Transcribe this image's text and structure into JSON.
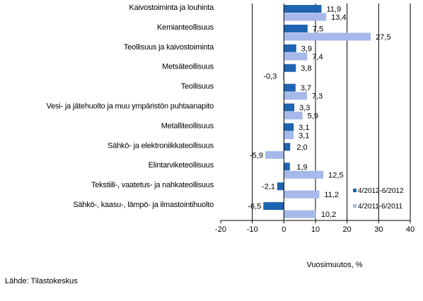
{
  "chart_data": {
    "type": "bar",
    "orientation": "horizontal",
    "categories": [
      "Kaivostoiminta ja louhinta",
      "Kemianteollisuus",
      "Teollisuus ja kaivostoiminta",
      "Metsäteollisuus",
      "Teollisuus",
      "Vesi- ja jätehuolto ja muu ympäristön puhtaanapito",
      "Metalliteollisuus",
      "Sähkö- ja elektroniikkateollisuus",
      "Elintarviketeollisuus",
      "Tekstiili-, vaatetus- ja nahkateollisuus",
      "Sähkö-, kaasu-, lämpö- ja ilmastointihuolto"
    ],
    "series": [
      {
        "name": "4/2012-6/2012",
        "color": "#1f64b0",
        "values": [
          11.9,
          7.5,
          3.9,
          3.8,
          3.7,
          3.3,
          3.1,
          2.0,
          1.9,
          -2.1,
          -6.5
        ],
        "labels": [
          "11,9",
          "7,5",
          "3,9",
          "3,8",
          "3,7",
          "3,3",
          "3,1",
          "2,0",
          "1,9",
          "-2,1",
          "-6,5"
        ]
      },
      {
        "name": "4/2011-6/2011",
        "color": "#a6b9ea",
        "values": [
          13.4,
          27.5,
          7.4,
          -0.3,
          7.3,
          5.9,
          3.1,
          -5.9,
          12.5,
          11.2,
          10.2
        ],
        "labels": [
          "13,4",
          "27,5",
          "7,4",
          "-0,3",
          "7,3",
          "5,9",
          "3,1",
          "-5,9",
          "12,5",
          "11,2",
          "10,2"
        ]
      }
    ],
    "xlim": [
      -20,
      40
    ],
    "x_ticks": [
      -20,
      -10,
      0,
      10,
      20,
      30,
      40
    ],
    "x_tick_labels": [
      "-20",
      "-10",
      "0",
      "10",
      "20",
      "30",
      "40"
    ],
    "xlabel": "Vuosimuutos, %",
    "grid": "vertical",
    "legend_position": "bottom-right",
    "source": "Lähde: Tilastokeskus"
  }
}
